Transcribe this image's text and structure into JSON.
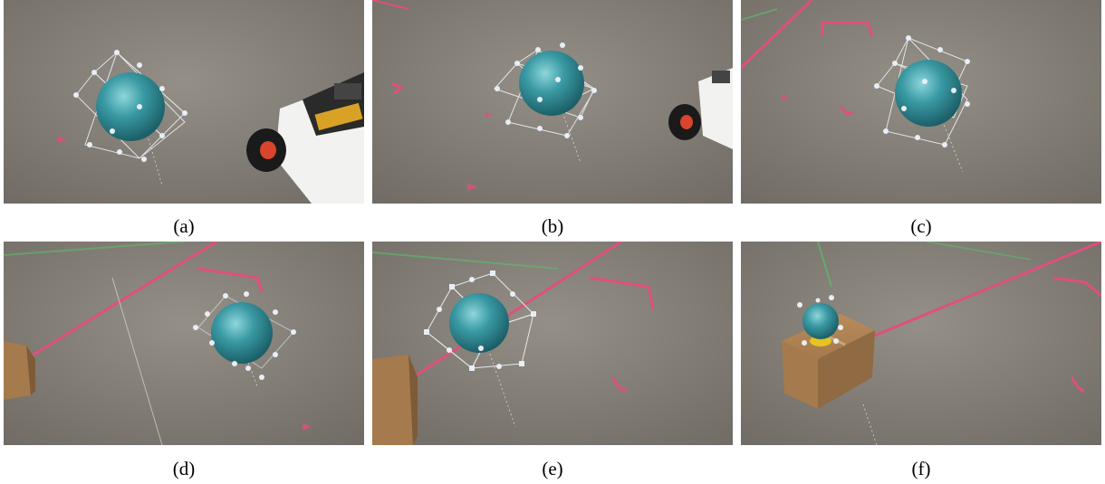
{
  "figure": {
    "captions": [
      "(a)",
      "(b)",
      "(c)",
      "(d)",
      "(e)",
      "(f)"
    ]
  },
  "colors": {
    "floor": "#807b73",
    "floor_light": "#9a958d",
    "sphere": "#2f8f9a",
    "sphere_highlight": "#7fd0d6",
    "tape_red": "#e0507a",
    "tape_green": "#5bbd6a",
    "box": "#a57a4c",
    "box_dark": "#7e5b37",
    "handle": "#e8eef5"
  }
}
